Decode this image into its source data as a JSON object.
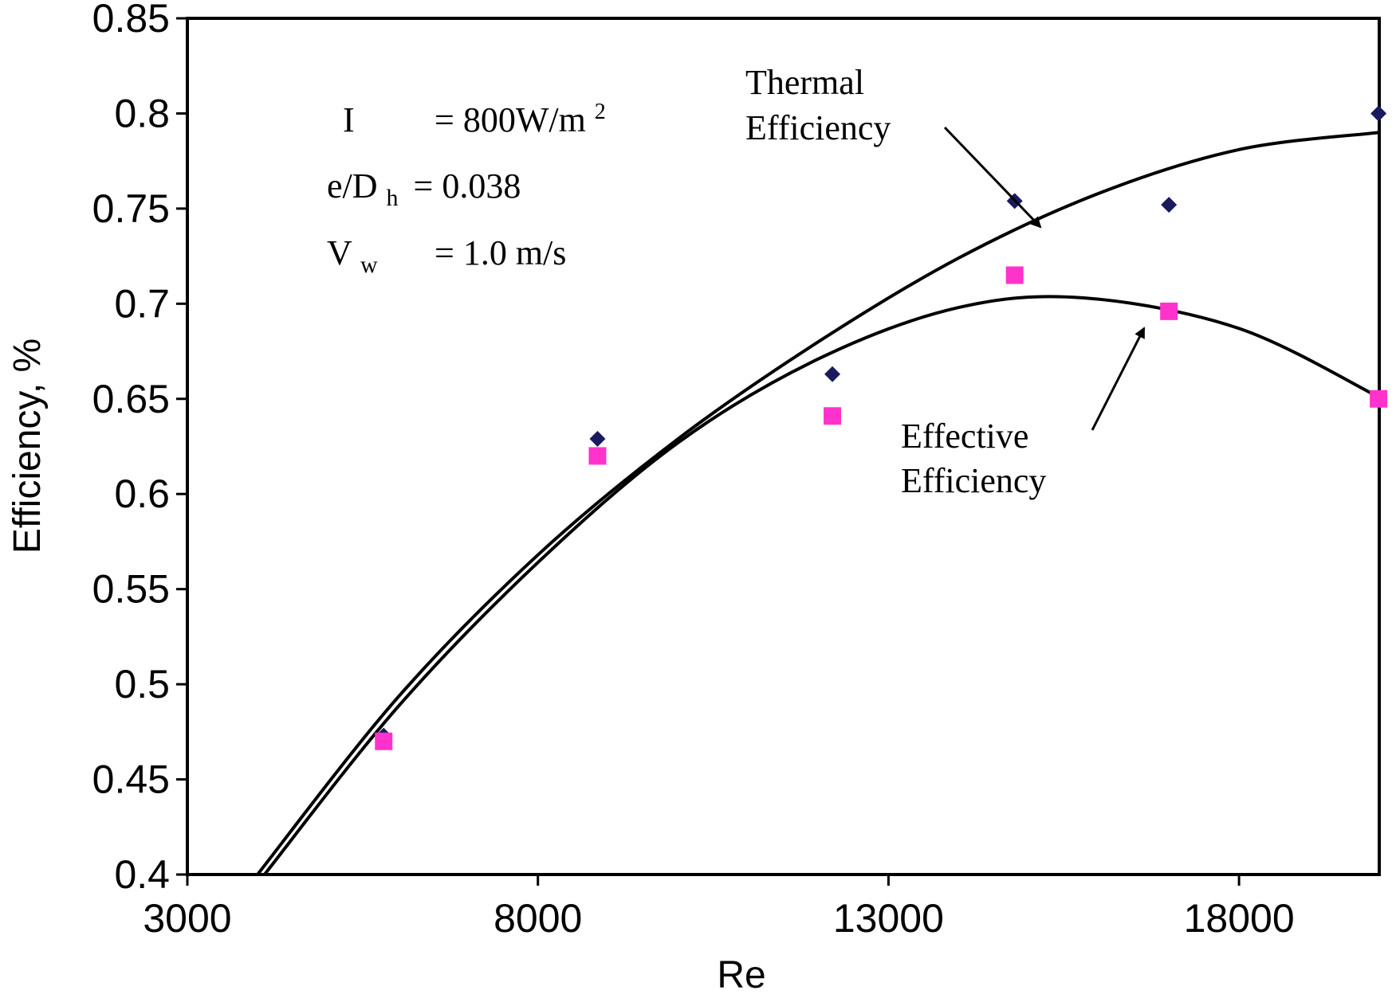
{
  "chart_data": {
    "type": "scatter",
    "title": "",
    "xlabel": "Re",
    "ylabel": "Efficiency, %",
    "xlim": [
      3000,
      20000
    ],
    "ylim": [
      0.4,
      0.85
    ],
    "grid": false,
    "x_ticks": [
      3000,
      8000,
      13000,
      18000
    ],
    "x_tick_labels": [
      "3000",
      "8000",
      "13000",
      "18000"
    ],
    "y_ticks": [
      0.4,
      0.45,
      0.5,
      0.55,
      0.6,
      0.65,
      0.7,
      0.75,
      0.8,
      0.85
    ],
    "y_tick_labels": [
      "0.4",
      "0.45",
      "0.5",
      "0.55",
      "0.6",
      "0.65",
      "0.7",
      "0.75",
      "0.8",
      "0.85"
    ],
    "series": [
      {
        "name": "Thermal Efficiency",
        "marker": "diamond",
        "color": "#1a1a5e",
        "x": [
          5800,
          8850,
          12200,
          14800,
          17000,
          19990
        ],
        "y": [
          0.473,
          0.629,
          0.663,
          0.754,
          0.752,
          0.8
        ],
        "fit": {
          "x": [
            4000,
            6000,
            8000,
            10000,
            12000,
            14000,
            16000,
            18000,
            19990
          ],
          "y": [
            0.4,
            0.493,
            0.568,
            0.629,
            0.68,
            0.724,
            0.758,
            0.781,
            0.79
          ]
        }
      },
      {
        "name": "Effective Efficiency",
        "marker": "square",
        "color": "#ff33cc",
        "x": [
          5800,
          8850,
          12200,
          14800,
          17000,
          19990
        ],
        "y": [
          0.47,
          0.62,
          0.641,
          0.715,
          0.696,
          0.65
        ],
        "fit": {
          "x": [
            4100,
            6000,
            8000,
            10000,
            12000,
            14000,
            15800,
            18000,
            19990
          ],
          "y": [
            0.4,
            0.488,
            0.564,
            0.627,
            0.671,
            0.698,
            0.703,
            0.687,
            0.651
          ]
        }
      }
    ],
    "annotations": {
      "params": [
        {
          "sym": "I",
          "sub": "",
          "eq": "= 800W/m",
          "sup": "2"
        },
        {
          "sym": "e/D",
          "sub": "h",
          "eq": "= 0.038",
          "sup": ""
        },
        {
          "sym": "V",
          "sub": "w",
          "eq": "= 1.0 m/s",
          "sup": ""
        }
      ],
      "thermal_label": [
        "Thermal",
        "Efficiency"
      ],
      "effective_label": [
        "Effective",
        "Efficiency"
      ]
    }
  }
}
